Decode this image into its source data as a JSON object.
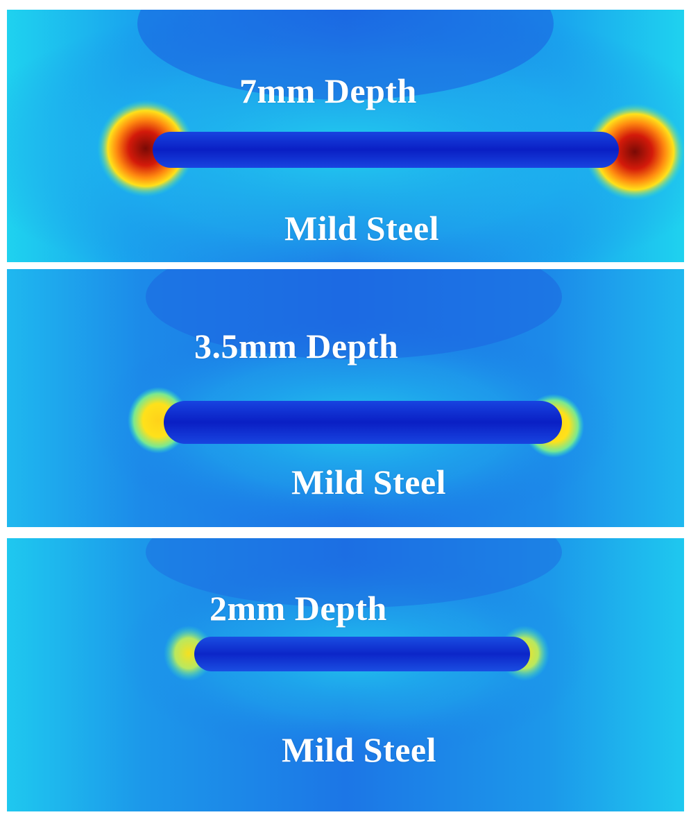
{
  "figure": {
    "panels": [
      {
        "depth_label": "7mm Depth",
        "material_label": "Mild Steel"
      },
      {
        "depth_label": "3.5mm Depth",
        "material_label": "Mild Steel"
      },
      {
        "depth_label": "2mm Depth",
        "material_label": "Mild Steel"
      }
    ],
    "colors": {
      "background_blue": "#1f6fe6",
      "field_cyan": "#1fd6f2",
      "defect_blue": "#0a22c8",
      "hot_yellow": "#ffe11a",
      "hot_red": "#d31a0a",
      "hot_darkred": "#7a0a05"
    }
  }
}
